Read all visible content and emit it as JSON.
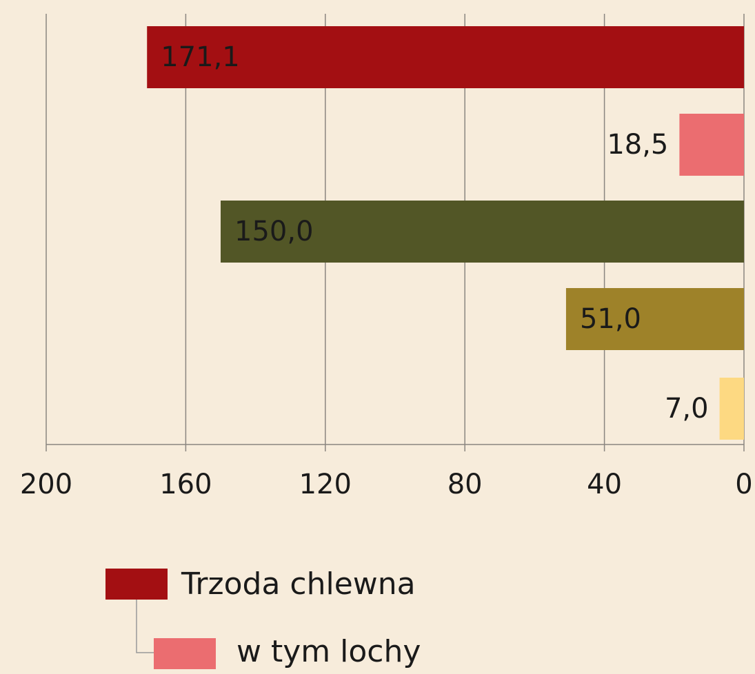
{
  "chart_data": {
    "type": "barh",
    "categories": [
      null,
      null,
      null,
      null,
      null
    ],
    "values": [
      171.1,
      18.5,
      150.0,
      51.0,
      7.0
    ],
    "value_labels": [
      "171,1",
      "18,5",
      "150,0",
      "51,0",
      "7,0"
    ],
    "colors": [
      "#a30f12",
      "#eb6d70",
      "#525626",
      "#9e8229",
      "#fdd982"
    ],
    "xlim": [
      200,
      0
    ],
    "xticks": [
      200,
      160,
      120,
      80,
      40,
      0
    ],
    "grid": true,
    "legend": [
      {
        "name": "Trzoda chlewna",
        "color": "#a30f12"
      },
      {
        "name": "w tym lochy",
        "color": "#eb6d70"
      }
    ]
  }
}
